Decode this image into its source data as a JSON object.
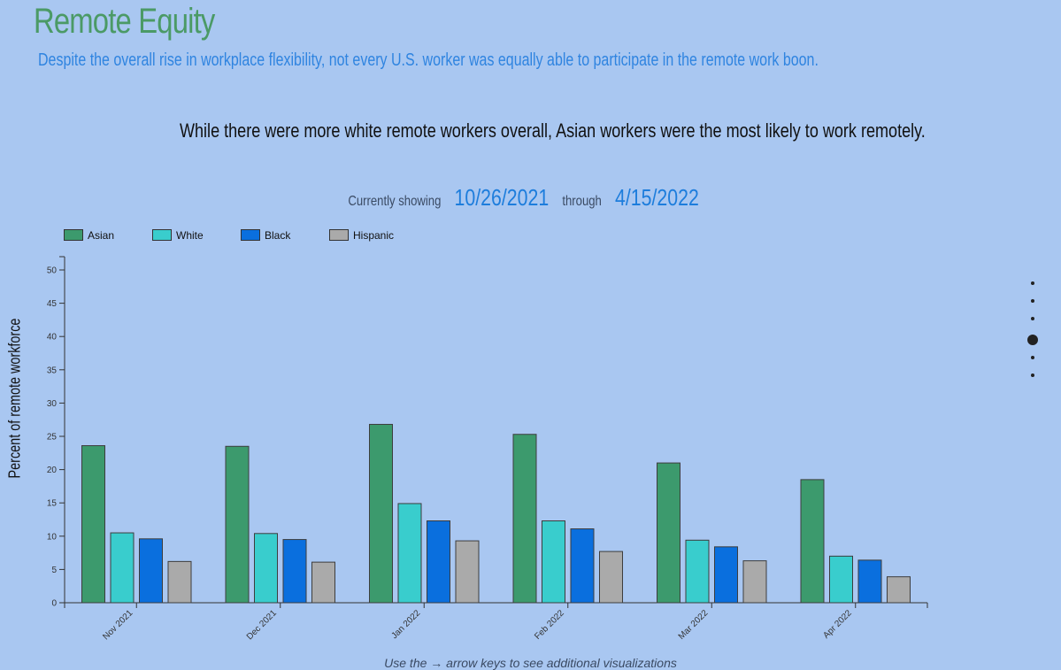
{
  "header": {
    "title": "Remote Equity",
    "subtitle": "Despite the overall rise in workplace flexibility, not every U.S. worker was equally able to participate in the remote work boon."
  },
  "headline": "While there were more white remote workers overall, Asian workers were the most likely to work remotely.",
  "date_range": {
    "prefix": "Currently showing",
    "start": "10/26/2021",
    "middle": "through",
    "end": "4/15/2022"
  },
  "footer_note": "Use the → arrow keys to see additional visualizations",
  "nav": {
    "dot_count": 6,
    "active_index": 3
  },
  "chart_data": {
    "type": "bar",
    "ylabel": "Percent of remote workforce",
    "ylim": [
      0,
      50
    ],
    "y_ticks": [
      0,
      5,
      10,
      15,
      20,
      25,
      30,
      35,
      40,
      45,
      50
    ],
    "categories": [
      "Nov 2021",
      "Dec 2021",
      "Jan 2022",
      "Feb 2022",
      "Mar 2022",
      "Apr 2022"
    ],
    "legend_position": "top-left",
    "grid": false,
    "series": [
      {
        "name": "Asian",
        "color": "#3c9a6d",
        "values": [
          23.6,
          23.5,
          26.8,
          25.3,
          21.0,
          18.5
        ]
      },
      {
        "name": "White",
        "color": "#39cdcd",
        "values": [
          10.5,
          10.4,
          14.9,
          12.3,
          9.4,
          7.0
        ]
      },
      {
        "name": "Black",
        "color": "#0a6fde",
        "values": [
          9.6,
          9.5,
          12.3,
          11.1,
          8.4,
          6.4
        ]
      },
      {
        "name": "Hispanic",
        "color": "#aaaaaa",
        "values": [
          6.2,
          6.1,
          9.3,
          7.7,
          6.3,
          3.9
        ]
      }
    ]
  }
}
